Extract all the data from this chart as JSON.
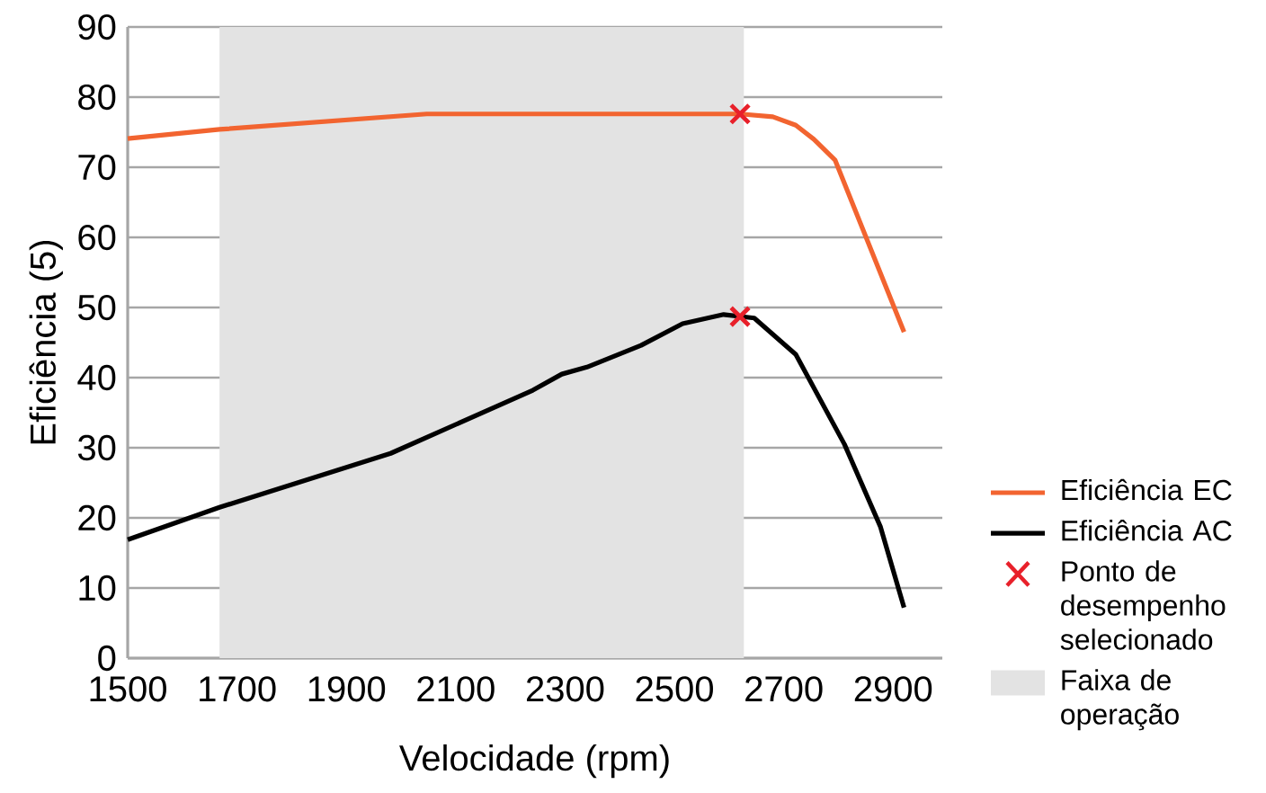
{
  "chart_data": {
    "type": "line",
    "xlabel": "Velocidade (rpm)",
    "ylabel": "Eficiência (5)",
    "xlim": [
      1500,
      2990
    ],
    "ylim": [
      0,
      90
    ],
    "xticks": [
      1500,
      1700,
      1900,
      2100,
      2300,
      2500,
      2700,
      2900
    ],
    "yticks": [
      0,
      10,
      20,
      30,
      40,
      50,
      60,
      70,
      80,
      90
    ],
    "grid": "y",
    "legend": "right",
    "line_style": "solid",
    "series": [
      {
        "name": "Eficiência EC",
        "type": "line",
        "color": "#f26430",
        "x": [
          1500,
          1668,
          2047,
          2300,
          2580,
          2620,
          2680,
          2722,
          2755,
          2794,
          2920
        ],
        "values": [
          74.1,
          75.4,
          77.6,
          77.6,
          77.6,
          77.6,
          77.2,
          76.0,
          74.0,
          71.0,
          46.5
        ]
      },
      {
        "name": "Eficiência AC",
        "type": "line",
        "color": "#000000",
        "x": [
          1500,
          1668,
          1981,
          2241,
          2294,
          2340,
          2439,
          2515,
          2590,
          2646,
          2722,
          2811,
          2877,
          2920
        ],
        "values": [
          16.9,
          21.5,
          29.2,
          38.2,
          40.5,
          41.5,
          44.6,
          47.7,
          49.0,
          48.5,
          43.3,
          30.5,
          18.7,
          7.2
        ]
      },
      {
        "name": "Ponto de desempenho selecionado",
        "type": "scatter",
        "marker": "cross",
        "color": "#e8202a",
        "x": [
          2620,
          2620
        ],
        "values": [
          77.6,
          48.7
        ]
      }
    ],
    "bands": [
      {
        "axis": "x",
        "from": 1668,
        "to": 2627,
        "label": "Faixa de operação",
        "color": "#e3e3e3"
      }
    ]
  }
}
